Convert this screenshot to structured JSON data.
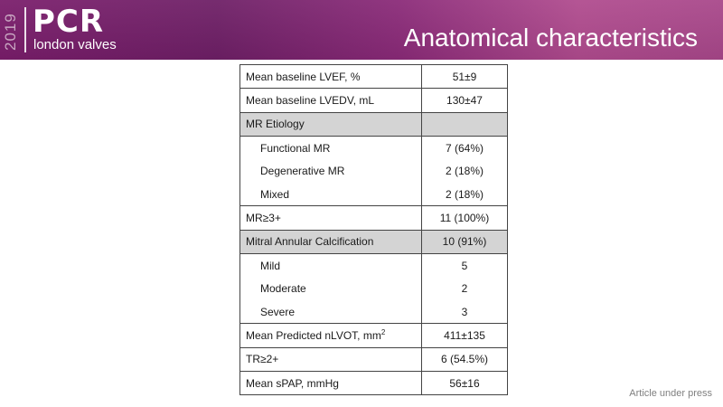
{
  "header": {
    "year": "2019",
    "brand": "PCR",
    "sub": "london valves",
    "title": "Anatomical characteristics"
  },
  "rows": [
    {
      "label": "Mean baseline LVEF, %",
      "value": "51±9"
    },
    {
      "label": "Mean baseline LVEDV, mL",
      "value": "130±47"
    },
    {
      "label": "MR Etiology",
      "value": ""
    },
    {
      "label": "Functional MR",
      "value": "7 (64%)"
    },
    {
      "label": "Degenerative MR",
      "value": "2 (18%)"
    },
    {
      "label": "Mixed",
      "value": "2 (18%)"
    },
    {
      "label": "MR≥3+",
      "value": "11 (100%)"
    },
    {
      "label": "Mitral Annular Calcification",
      "value": "10 (91%)"
    },
    {
      "label": "Mild",
      "value": "5"
    },
    {
      "label": "Moderate",
      "value": "2"
    },
    {
      "label": "Severe",
      "value": "3"
    },
    {
      "label": "Mean Predicted nLVOT, mm",
      "label_sup": "2",
      "value": "411±135"
    },
    {
      "label": "TR≥2+",
      "value": "6 (54.5%)"
    },
    {
      "label": "Mean sPAP, mmHg",
      "value": "56±16"
    }
  ],
  "footer": "Article under press"
}
